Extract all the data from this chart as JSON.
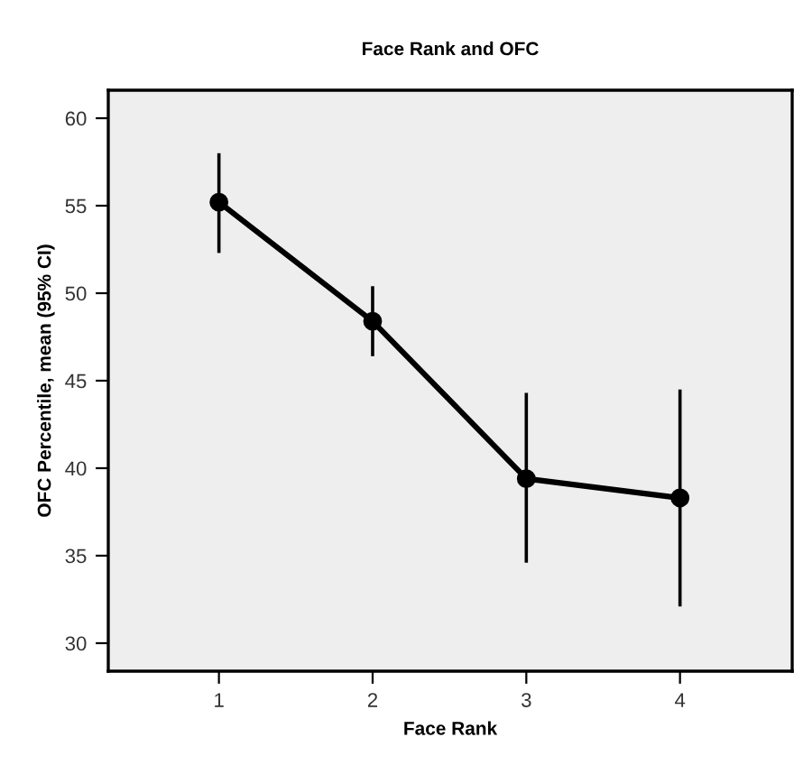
{
  "chart_data": {
    "type": "line",
    "title": "Face Rank and OFC",
    "xlabel": "Face Rank",
    "ylabel": "OFC Percentile, mean (95% CI)",
    "x": [
      1,
      2,
      3,
      4
    ],
    "series": [
      {
        "color": "#000000",
        "values": [
          55.2,
          48.4,
          39.4,
          38.3
        ],
        "errors": [
          [
            52.3,
            58.0
          ],
          [
            46.4,
            50.4
          ],
          [
            34.6,
            44.3
          ],
          [
            32.1,
            44.5
          ]
        ]
      }
    ],
    "xlim": [
      0.28,
      4.73
    ],
    "ylim": [
      28.4,
      61.6
    ],
    "xticks": [
      1,
      2,
      3,
      4
    ],
    "yticks": [
      30,
      35,
      40,
      45,
      50,
      55,
      60
    ],
    "grid": false,
    "marker": "circle",
    "line_style": "solid"
  }
}
